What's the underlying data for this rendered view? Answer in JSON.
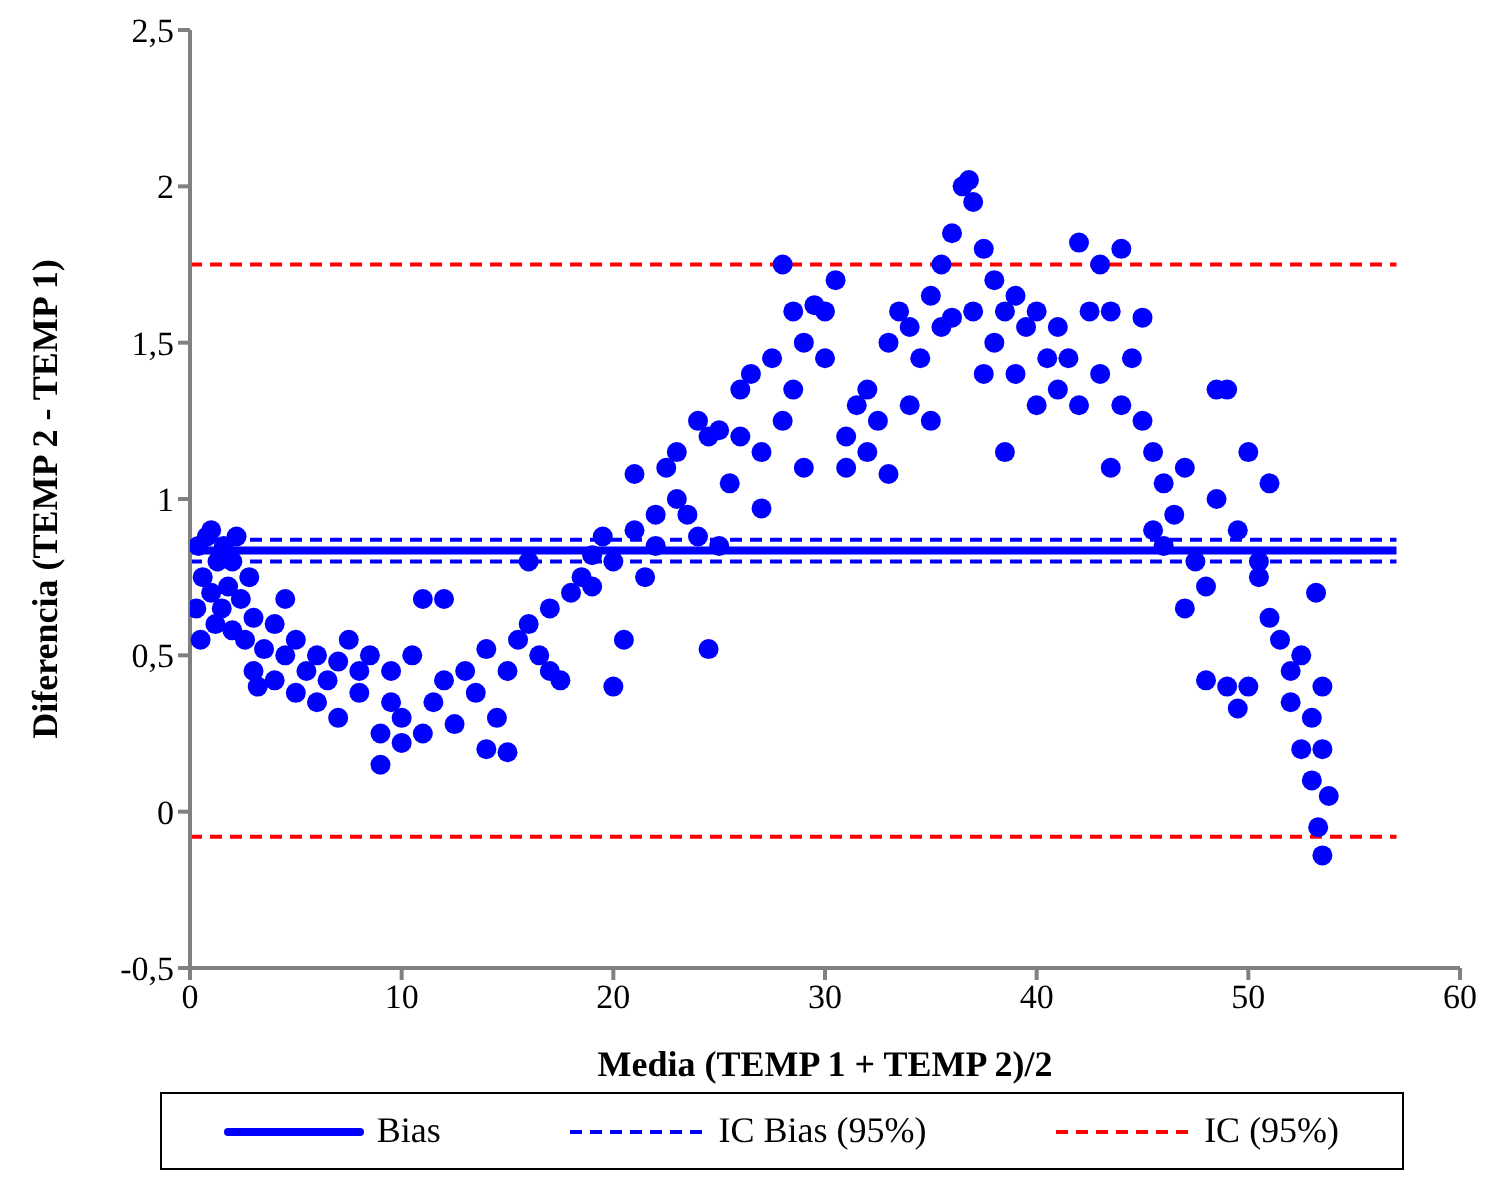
{
  "chart_data": {
    "type": "scatter",
    "xlabel": "Media (TEMP 1 + TEMP 2)/2",
    "ylabel": "Diferencia (TEMP 2 - TEMP 1)",
    "xlim": [
      0,
      60
    ],
    "xticks": [
      0,
      10,
      20,
      30,
      40,
      50,
      60
    ],
    "ylim": [
      -0.5,
      2.5
    ],
    "yticks": [
      {
        "value": -0.5,
        "label": "-0,5"
      },
      0,
      {
        "value": 0.5,
        "label": "0,5"
      },
      1,
      {
        "value": 1.5,
        "label": "1,5"
      },
      2,
      {
        "value": 2.5,
        "label": "2,5"
      }
    ],
    "grid": false,
    "legend": "bottom",
    "series": [
      {
        "color": "#0000ff",
        "marker": "circle",
        "x": [
          0.3,
          0.4,
          0.5,
          0.6,
          0.8,
          1,
          1,
          1.2,
          1.3,
          1.5,
          1.6,
          1.8,
          2,
          2,
          2.2,
          2.4,
          2.6,
          2.8,
          3,
          3,
          3.2,
          3.5,
          4,
          4,
          4.5,
          4.5,
          5,
          5,
          5.5,
          6,
          6,
          6.5,
          7,
          7,
          7.5,
          8,
          8,
          8.5,
          9,
          9,
          9.5,
          9.5,
          10,
          10,
          10.5,
          11,
          11,
          11.5,
          12,
          12,
          12.5,
          13,
          13.5,
          14,
          14,
          14.5,
          15,
          15,
          15.5,
          16,
          16,
          16.5,
          17,
          17,
          17.5,
          18,
          18.5,
          19,
          19,
          19.5,
          20,
          20,
          20.5,
          21,
          21,
          21.5,
          22,
          22,
          22.5,
          23,
          23,
          23.5,
          24,
          24,
          24.5,
          24.5,
          25,
          25,
          25.5,
          26,
          26,
          26.5,
          27,
          27,
          27.5,
          28,
          28,
          28.5,
          28.5,
          29,
          29,
          29.5,
          30,
          30,
          30.5,
          31,
          31,
          31.5,
          32,
          32,
          32.5,
          33,
          33,
          33.5,
          34,
          34,
          34.5,
          35,
          35,
          35.5,
          35.5,
          36,
          36,
          36.5,
          36.8,
          37,
          37,
          37.5,
          37.5,
          38,
          38,
          38.5,
          38.5,
          39,
          39,
          39.5,
          40,
          40,
          40.5,
          41,
          41,
          41.5,
          42,
          42,
          42.5,
          43,
          43,
          43.5,
          43.5,
          44,
          44,
          44.5,
          45,
          45,
          45.5,
          45.5,
          46,
          46,
          46.5,
          47,
          47,
          47.5,
          48,
          48,
          48.5,
          48.5,
          49,
          49,
          49.5,
          49.5,
          50,
          50,
          50.5,
          50.5,
          51,
          51,
          51.5,
          52,
          52,
          52.5,
          52.5,
          53,
          53,
          53.2,
          53.3,
          53.5,
          53.5,
          53.8,
          53.5
        ],
        "values": [
          0.65,
          0.85,
          0.55,
          0.75,
          0.88,
          0.7,
          0.9,
          0.6,
          0.8,
          0.65,
          0.85,
          0.72,
          0.58,
          0.8,
          0.88,
          0.68,
          0.55,
          0.75,
          0.62,
          0.45,
          0.4,
          0.52,
          0.6,
          0.42,
          0.68,
          0.5,
          0.38,
          0.55,
          0.45,
          0.35,
          0.5,
          0.42,
          0.3,
          0.48,
          0.55,
          0.38,
          0.45,
          0.5,
          0.25,
          0.15,
          0.35,
          0.45,
          0.22,
          0.3,
          0.5,
          0.25,
          0.68,
          0.35,
          0.68,
          0.42,
          0.28,
          0.45,
          0.38,
          0.2,
          0.52,
          0.3,
          0.19,
          0.45,
          0.55,
          0.6,
          0.8,
          0.5,
          0.45,
          0.65,
          0.42,
          0.7,
          0.75,
          0.72,
          0.82,
          0.88,
          0.4,
          0.8,
          0.55,
          0.9,
          1.08,
          0.75,
          0.95,
          0.85,
          1.1,
          1.0,
          1.15,
          0.95,
          1.25,
          0.88,
          0.52,
          1.2,
          1.22,
          0.85,
          1.05,
          1.35,
          1.2,
          1.4,
          1.15,
          0.97,
          1.45,
          1.75,
          1.25,
          1.6,
          1.35,
          1.1,
          1.5,
          1.62,
          1.45,
          1.6,
          1.7,
          1.2,
          1.1,
          1.3,
          1.35,
          1.15,
          1.25,
          1.5,
          1.08,
          1.6,
          1.55,
          1.3,
          1.45,
          1.65,
          1.25,
          1.75,
          1.55,
          1.85,
          1.58,
          2.0,
          2.02,
          1.95,
          1.6,
          1.8,
          1.4,
          1.7,
          1.5,
          1.6,
          1.15,
          1.65,
          1.4,
          1.55,
          1.6,
          1.3,
          1.45,
          1.35,
          1.55,
          1.45,
          1.82,
          1.3,
          1.6,
          1.75,
          1.4,
          1.1,
          1.6,
          1.8,
          1.3,
          1.45,
          1.58,
          1.25,
          1.15,
          0.9,
          1.05,
          0.85,
          0.95,
          1.1,
          0.65,
          0.8,
          0.72,
          0.42,
          1.0,
          1.35,
          0.4,
          1.35,
          0.33,
          0.9,
          1.15,
          0.4,
          0.8,
          0.75,
          1.05,
          0.62,
          0.55,
          0.45,
          0.35,
          0.5,
          0.2,
          0.3,
          0.1,
          0.7,
          -0.05,
          0.4,
          -0.14,
          0.05,
          0.2
        ]
      },
      {
        "type": "line",
        "name": "Bias",
        "color": "#0000ff",
        "marker": "none",
        "line_style": "solid",
        "x": [
          0,
          57
        ],
        "values": [
          0.835,
          0.835
        ]
      },
      {
        "type": "line",
        "name": "IC Bias (95%)",
        "color": "#0000ff",
        "marker": "none",
        "line_style": "dashed",
        "x": [
          0,
          57
        ],
        "values": [
          0.87,
          0.87
        ]
      },
      {
        "type": "line",
        "color": "#0000ff",
        "marker": "none",
        "line_style": "dashed",
        "x": [
          0,
          57
        ],
        "values": [
          0.8,
          0.8
        ]
      },
      {
        "type": "line",
        "name": "IC (95%)",
        "color": "#ff0000",
        "marker": "none",
        "line_style": "dashed",
        "x": [
          0,
          57
        ],
        "values": [
          1.75,
          1.75
        ]
      },
      {
        "type": "line",
        "color": "#ff0000",
        "marker": "none",
        "line_style": "dashed",
        "x": [
          0,
          57
        ],
        "values": [
          -0.08,
          -0.08
        ]
      }
    ]
  }
}
